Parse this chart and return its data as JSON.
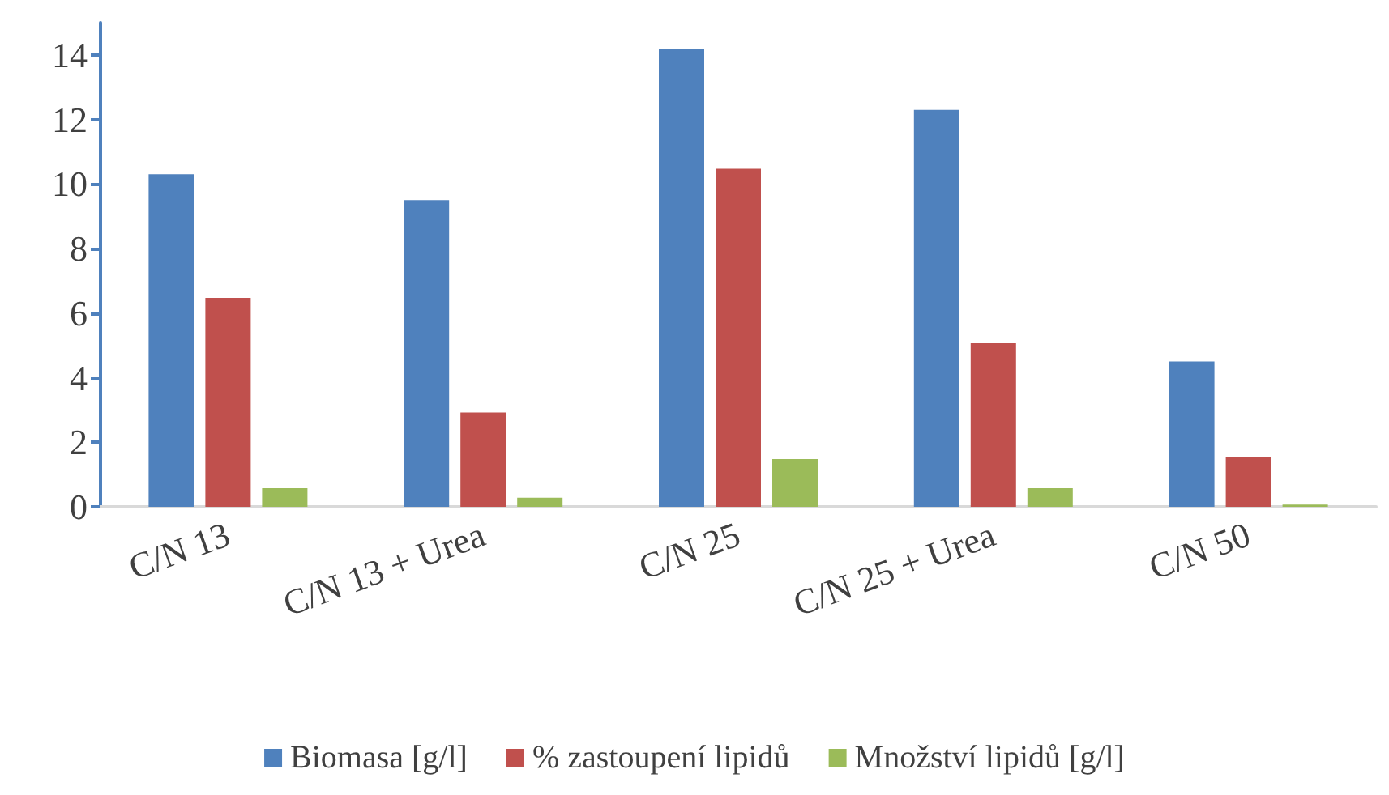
{
  "chart_data": {
    "type": "bar",
    "categories": [
      "C/N 13",
      "C/N 13 + Urea",
      "C/N 25",
      "C/N 25 + Urea",
      "C/N 50"
    ],
    "series": [
      {
        "name": "Biomasa [g/l]",
        "color": "#4f81bd",
        "values": [
          10.3,
          9.5,
          14.2,
          12.3,
          4.5
        ]
      },
      {
        "name": "% zastoupení lipidů",
        "color": "#c0504d",
        "values": [
          6.47,
          2.92,
          10.47,
          5.07,
          1.53
        ]
      },
      {
        "name": "Množství lipidů [g/l]",
        "color": "#9bbb59",
        "values": [
          0.58,
          0.28,
          1.48,
          0.58,
          0.07
        ]
      }
    ],
    "ylim": [
      0,
      15
    ],
    "yticks": [
      0,
      2,
      4,
      6,
      8,
      10,
      12,
      14
    ],
    "grid": false,
    "legend": "bottom"
  }
}
